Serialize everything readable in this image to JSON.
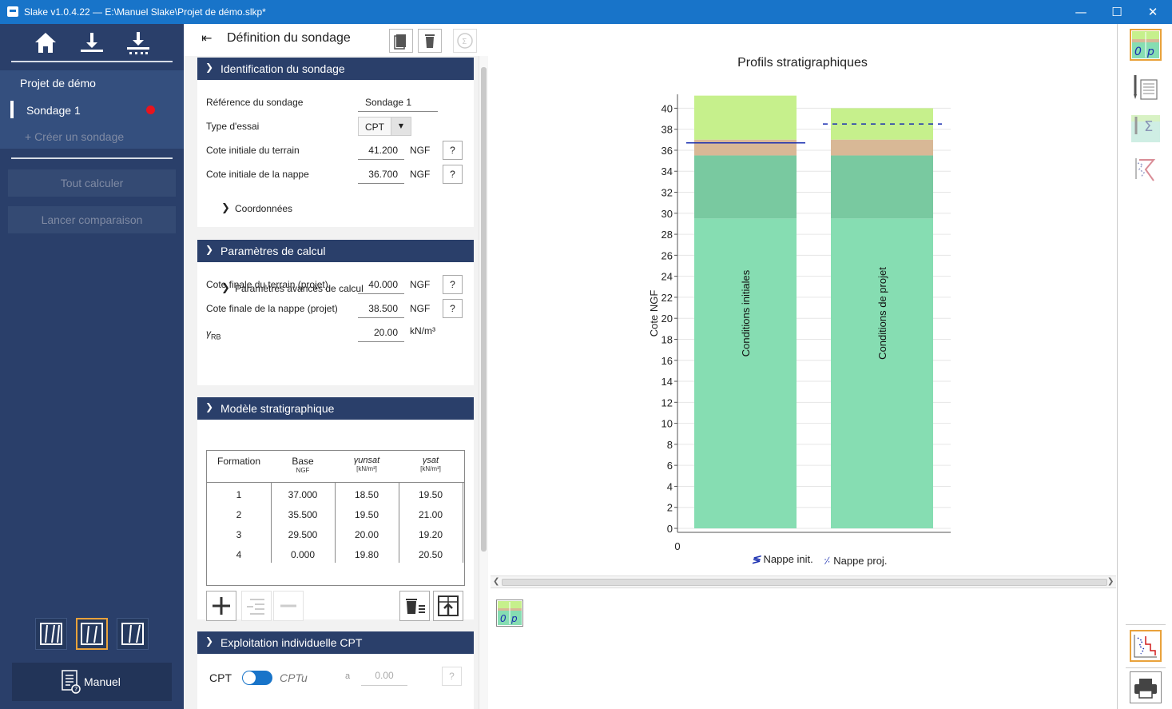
{
  "window": {
    "title": "Slake v1.0.4.22 — E:\\Manuel Slake\\Projet de démo.slkp*",
    "minimize": "—",
    "maximize": "☐",
    "close": "✕"
  },
  "sidebar": {
    "project_name": "Projet de démo",
    "active_sondage": "Sondage 1",
    "create_sondage": "+ Créer un sondage",
    "calc_all": "Tout calculer",
    "compare": "Lancer comparaison",
    "manual": "Manuel",
    "colors": {
      "background": "#2a3f6a",
      "status_dot": "#e8141d"
    }
  },
  "panel": {
    "title": "Définition du sondage",
    "collapse_icon": "K",
    "identification": {
      "header": "Identification du sondage",
      "ref_label": "Référence du sondage",
      "ref_value": "Sondage 1",
      "type_label": "Type d'essai",
      "type_value": "CPT",
      "cote_terrain_label": "Cote initiale du terrain",
      "cote_terrain_value": "41.200",
      "cote_nappe_label": "Cote initiale de la nappe",
      "cote_nappe_value": "36.700",
      "unit": "NGF",
      "help": "?",
      "coordonnees": "Coordonnées"
    },
    "calcul": {
      "header": "Paramètres de calcul",
      "terrain_label": "Cote finale du terrain (projet)",
      "terrain_value": "40.000",
      "nappe_label": "Cote finale de la nappe (projet)",
      "nappe_value": "38.500",
      "gamma_label": "γ",
      "gamma_sub": "RB",
      "gamma_value": "20.00",
      "gamma_unit": "kN/m³",
      "unit": "NGF",
      "help": "?",
      "avances": "Paramètres avancés de calcul"
    },
    "strat": {
      "header": "Modèle stratigraphique",
      "col_formation": "Formation",
      "col_base": "Base",
      "col_base_unit": "NGF",
      "col_unsat": "γunsat",
      "col_sat": "γsat",
      "col_unit": "[kN/m³]",
      "rows": [
        {
          "f": "1",
          "base": "37.000",
          "unsat": "18.50",
          "sat": "19.50"
        },
        {
          "f": "2",
          "base": "35.500",
          "unsat": "19.50",
          "sat": "21.00"
        },
        {
          "f": "3",
          "base": "29.500",
          "unsat": "20.00",
          "sat": "19.20"
        },
        {
          "f": "4",
          "base": "0.000",
          "unsat": "19.80",
          "sat": "20.50"
        }
      ]
    },
    "cpt": {
      "header": "Exploitation individuelle CPT",
      "left": "CPT",
      "right": "CPTu",
      "a_label": "a",
      "a_value": "0.00",
      "help": "?"
    }
  },
  "chart_data": {
    "type": "bar",
    "title": "Profils stratigraphiques",
    "ylabel": "Cote NGF",
    "ylim": [
      0,
      41
    ],
    "yticks": [
      "0",
      "2",
      "4",
      "6",
      "8",
      "10",
      "12",
      "14",
      "16",
      "18",
      "20",
      "22",
      "24",
      "26",
      "28",
      "30",
      "32",
      "34",
      "36",
      "38",
      "40"
    ],
    "x_origin_label": "0",
    "categories": [
      "Conditions initiales",
      "Conditions de projet"
    ],
    "layers": [
      {
        "name": "1",
        "color": "#c6f08c",
        "initial": [
          37.0,
          41.2
        ],
        "project": [
          37.0,
          40.0
        ]
      },
      {
        "name": "2",
        "color": "#d8b896",
        "initial": [
          35.5,
          37.0
        ],
        "project": [
          35.5,
          37.0
        ]
      },
      {
        "name": "3",
        "color": "#79c9a0",
        "initial": [
          29.5,
          35.5
        ],
        "project": [
          29.5,
          35.5
        ]
      },
      {
        "name": "4",
        "color": "#86ddb2",
        "initial": [
          0.0,
          29.5
        ],
        "project": [
          0.0,
          29.5
        ]
      }
    ],
    "water_initial": 36.7,
    "water_project": 38.5,
    "legend": [
      "Nappe init.",
      "Nappe proj."
    ]
  }
}
